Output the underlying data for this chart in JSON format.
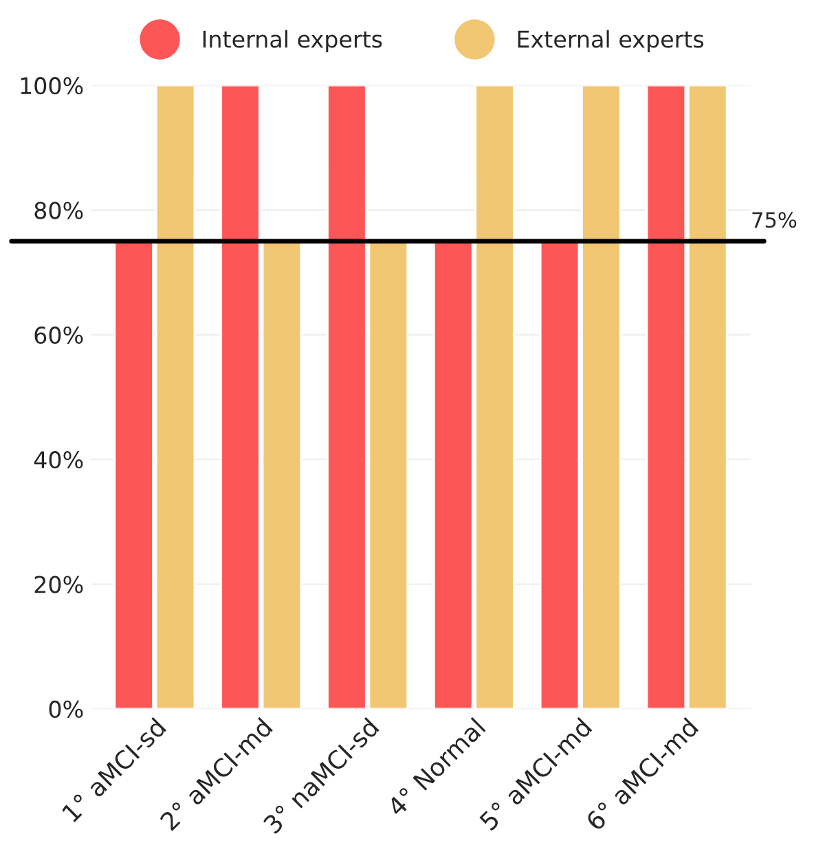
{
  "chart_data": {
    "type": "bar",
    "categories": [
      "1° aMCI-sd",
      "2° aMCI-md",
      "3° naMCI-sd",
      "4° Normal",
      "5° aMCI-md",
      "6° aMCI-md"
    ],
    "series": [
      {
        "name": "Internal experts",
        "color": "#fd5657",
        "values": [
          75,
          100,
          100,
          75,
          75,
          100
        ]
      },
      {
        "name": "External experts",
        "color": "#f1c773",
        "values": [
          100,
          75,
          75,
          100,
          100,
          100
        ]
      }
    ],
    "ylim": [
      0,
      100
    ],
    "yticks": [
      {
        "value": 0,
        "label": "0%"
      },
      {
        "value": 20,
        "label": "20%"
      },
      {
        "value": 40,
        "label": "40%"
      },
      {
        "value": 60,
        "label": "60%"
      },
      {
        "value": 80,
        "label": "80%"
      },
      {
        "value": 100,
        "label": "100%"
      }
    ],
    "ref_lines": [
      {
        "axis": "y",
        "value": 75,
        "label": "75%",
        "color": "#000000"
      }
    ],
    "grid": "y",
    "legend": "top"
  }
}
